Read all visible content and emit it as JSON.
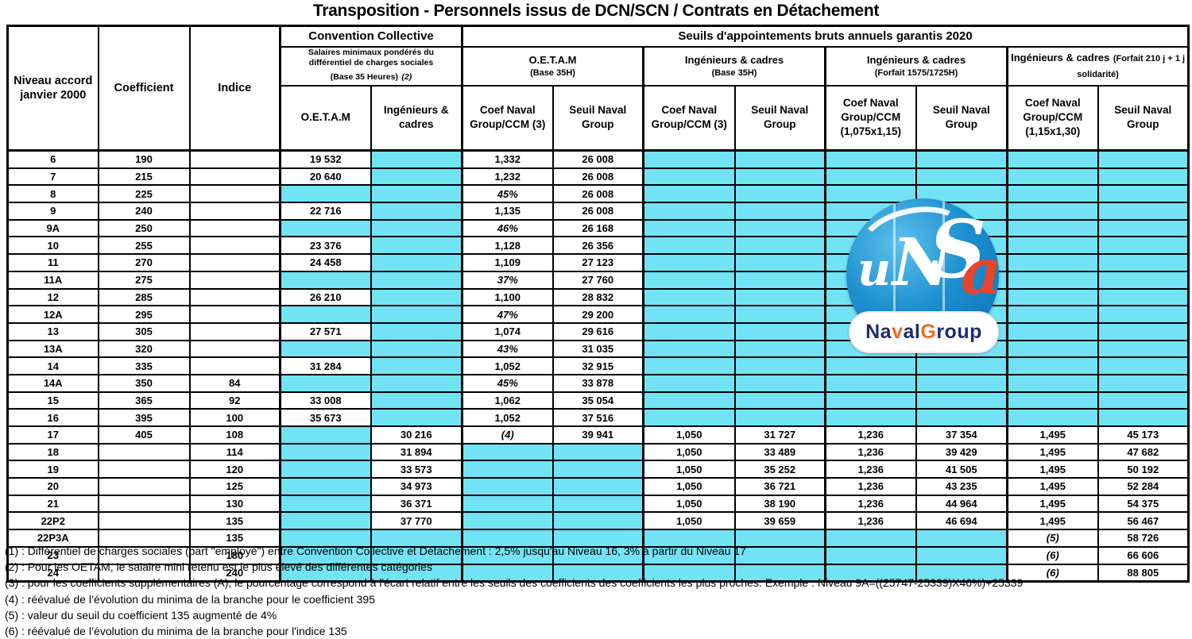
{
  "page": {
    "title": "Transposition - Personnels issus de DCN/SCN / Contrats en Détachement"
  },
  "colors": {
    "cell_fill": "#72E3F5",
    "logo_blue": "#1e90cf",
    "logo_navy": "#1d2b74",
    "logo_orange": "#f26a21",
    "logo_red_a": "#e8452c"
  },
  "table": {
    "corner": [
      "Niveau accord janvier 2000",
      "Coefficient",
      "Indice"
    ],
    "groups": {
      "cc": "Convention Collective",
      "seuils": "Seuils d'appointements bruts annuels garantis 2020"
    },
    "subgroups": [
      {
        "l1": "Salaires minimaux pondérés du différentiel de charges sociales",
        "l2": "(Base 35 Heures)",
        "note": "(2)"
      },
      {
        "l1": "O.E.T.A.M",
        "l2": "(Base 35H)"
      },
      {
        "l1": "Ingénieurs & cadres",
        "l2": "(Base 35H)"
      },
      {
        "l1": "Ingénieurs & cadres",
        "l2": "(Forfait  1575/1725H)"
      },
      {
        "l1": "Ingénieurs & cadres",
        "l2": "(Forfait 210 j + 1 j solidarité)"
      }
    ],
    "col_headers": [
      "O.E.T.A.M",
      "Ingénieurs & cadres",
      "Coef  Naval Group/CCM (3)",
      "Seuil Naval Group",
      "Coef  Naval Group/CCM (3)",
      "Seuil Naval Group",
      "Coef  Naval Group/CCM (1,075x1,15)",
      "Seuil Naval Group",
      "Coef Naval Group/CCM (1,15x1,30)",
      "Seuil Naval Group"
    ],
    "rows": [
      [
        "6",
        "190",
        "",
        "19 532",
        null,
        "1,332",
        "26 008",
        null,
        null,
        null,
        null,
        null,
        null
      ],
      [
        "7",
        "215",
        "",
        "20 640",
        null,
        "1,232",
        "26 008",
        null,
        null,
        null,
        null,
        null,
        null
      ],
      [
        "8",
        "225",
        "",
        null,
        null,
        "45%",
        "26 008",
        null,
        null,
        null,
        null,
        null,
        null
      ],
      [
        "9",
        "240",
        "",
        "22 716",
        null,
        "1,135",
        "26 008",
        null,
        null,
        null,
        null,
        null,
        null
      ],
      [
        "9A",
        "250",
        "",
        null,
        null,
        "46%",
        "26 168",
        null,
        null,
        null,
        null,
        null,
        null
      ],
      [
        "10",
        "255",
        "",
        "23 376",
        null,
        "1,128",
        "26 356",
        null,
        null,
        null,
        null,
        null,
        null
      ],
      [
        "11",
        "270",
        "",
        "24 458",
        null,
        "1,109",
        "27 123",
        null,
        null,
        null,
        null,
        null,
        null
      ],
      [
        "11A",
        "275",
        "",
        null,
        null,
        "37%",
        "27 760",
        null,
        null,
        null,
        null,
        null,
        null
      ],
      [
        "12",
        "285",
        "",
        "26 210",
        null,
        "1,100",
        "28 832",
        null,
        null,
        null,
        null,
        null,
        null
      ],
      [
        "12A",
        "295",
        "",
        null,
        null,
        "47%",
        "29 200",
        null,
        null,
        null,
        null,
        null,
        null
      ],
      [
        "13",
        "305",
        "",
        "27 571",
        null,
        "1,074",
        "29 616",
        null,
        null,
        null,
        null,
        null,
        null
      ],
      [
        "13A",
        "320",
        "",
        null,
        null,
        "43%",
        "31 035",
        null,
        null,
        null,
        null,
        null,
        null
      ],
      [
        "14",
        "335",
        "",
        "31 284",
        null,
        "1,052",
        "32 915",
        null,
        null,
        null,
        null,
        null,
        null
      ],
      [
        "14A",
        "350",
        "84",
        null,
        null,
        "45%",
        "33 878",
        null,
        null,
        null,
        null,
        null,
        null
      ],
      [
        "15",
        "365",
        "92",
        "33 008",
        null,
        "1,062",
        "35 054",
        null,
        null,
        null,
        null,
        null,
        null
      ],
      [
        "16",
        "395",
        "100",
        "35 673",
        null,
        "1,052",
        "37 516",
        null,
        null,
        null,
        null,
        null,
        null
      ],
      [
        "17",
        "405",
        "108",
        null,
        "30 216",
        "(4)",
        "39 941",
        "1,050",
        "31 727",
        "1,236",
        "37 354",
        "1,495",
        "45 173"
      ],
      [
        "18",
        "",
        "114",
        null,
        "31 894",
        null,
        null,
        "1,050",
        "33 489",
        "1,236",
        "39 429",
        "1,495",
        "47 682"
      ],
      [
        "19",
        "",
        "120",
        null,
        "33 573",
        null,
        null,
        "1,050",
        "35 252",
        "1,236",
        "41 505",
        "1,495",
        "50 192"
      ],
      [
        "20",
        "",
        "125",
        null,
        "34 973",
        null,
        null,
        "1,050",
        "36 721",
        "1,236",
        "43 235",
        "1,495",
        "52 284"
      ],
      [
        "21",
        "",
        "130",
        null,
        "36 371",
        null,
        null,
        "1,050",
        "38 190",
        "1,236",
        "44 964",
        "1,495",
        "54 375"
      ],
      [
        "22P2",
        "",
        "135",
        null,
        "37 770",
        null,
        null,
        "1,050",
        "39 659",
        "1,236",
        "46 694",
        "1,495",
        "56 467"
      ],
      [
        "22P3A",
        "",
        "135",
        null,
        null,
        null,
        null,
        null,
        null,
        null,
        null,
        "(5)",
        "58 726"
      ],
      [
        "23",
        "",
        "180",
        null,
        null,
        null,
        null,
        null,
        null,
        null,
        null,
        "(6)",
        "66 606"
      ],
      [
        "24",
        "",
        "240",
        null,
        null,
        null,
        null,
        null,
        null,
        null,
        null,
        "(6)",
        "88 805"
      ]
    ]
  },
  "footnotes": [
    "(1) : Différentiel de charges sociales (part \"employé\") entre Convention Collective et Détachement : 2,5% jusqu'au Niveau 16, 3% à partir du Niveau 17",
    "(2) : Pour les OETAM, le salaire mini retenu est le plus élevé des différentes catégories",
    "(3) : pour les coefficients supplémentaires (A), le pourcentage correspond à l'écart relatif entre les seuils des coefficients des coefficients les plus proches. Exemple : Niveau 9A=((25747-25339)X46%)+25339",
    "(4) : réévalué de l’évolution du minima de la branche pour le coefficient 395",
    "(5) : valeur du seuil du coefficient 135 augmenté de 4%",
    "(6) : réévalué de l’évolution du minima de la branche pour l'indice 135"
  ],
  "logo": {
    "unsa_letters": [
      {
        "t": "u",
        "c": "#ffffff"
      },
      {
        "t": "N",
        "c": "#ffffff"
      },
      {
        "t": "S",
        "c": "#ffffff"
      },
      {
        "t": "a",
        "c": "#e8452c"
      }
    ],
    "pill": [
      {
        "t": "Na",
        "c": "#1d2b74"
      },
      {
        "t": "v",
        "c": "#f26a21"
      },
      {
        "t": "al ",
        "c": "#1d2b74"
      },
      {
        "t": "G",
        "c": "#f26a21"
      },
      {
        "t": "roup",
        "c": "#1d2b74"
      }
    ]
  }
}
